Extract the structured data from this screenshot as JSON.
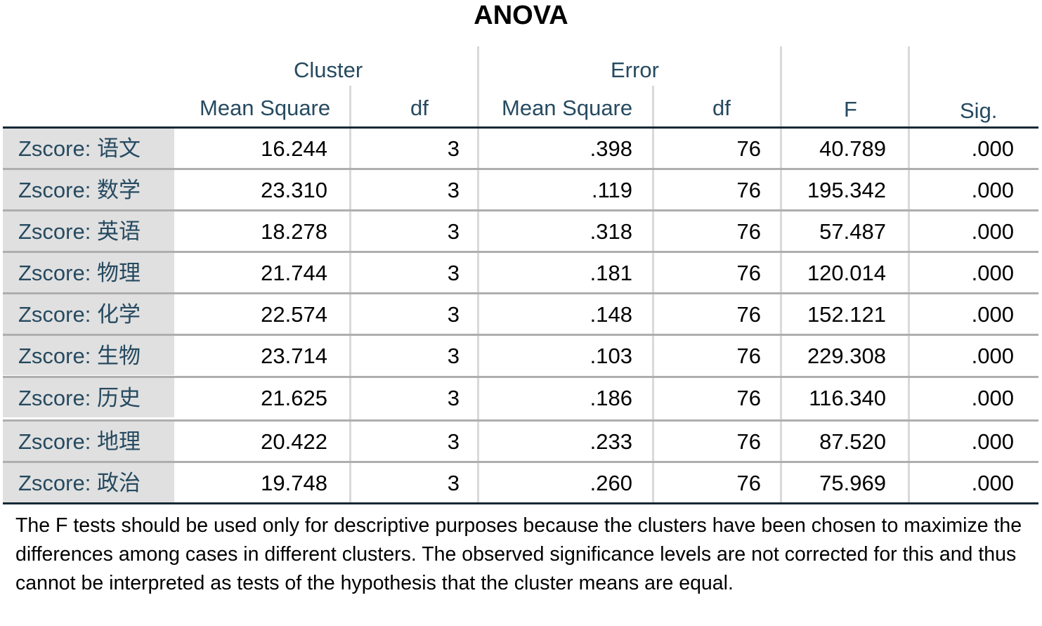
{
  "title": "ANOVA",
  "headers": {
    "cluster": "Cluster",
    "error": "Error",
    "cluster_mean_square": "Mean Square",
    "cluster_df": "df",
    "error_mean_square": "Mean Square",
    "error_df": "df",
    "f": "F",
    "sig": "Sig."
  },
  "rows": [
    {
      "label": "Zscore:  语文",
      "cluster_ms": "16.244",
      "cluster_df": "3",
      "error_ms": ".398",
      "error_df": "76",
      "f": "40.789",
      "sig": ".000"
    },
    {
      "label": "Zscore:  数学",
      "cluster_ms": "23.310",
      "cluster_df": "3",
      "error_ms": ".119",
      "error_df": "76",
      "f": "195.342",
      "sig": ".000"
    },
    {
      "label": "Zscore:  英语",
      "cluster_ms": "18.278",
      "cluster_df": "3",
      "error_ms": ".318",
      "error_df": "76",
      "f": "57.487",
      "sig": ".000"
    },
    {
      "label": "Zscore:  物理",
      "cluster_ms": "21.744",
      "cluster_df": "3",
      "error_ms": ".181",
      "error_df": "76",
      "f": "120.014",
      "sig": ".000"
    },
    {
      "label": "Zscore:  化学",
      "cluster_ms": "22.574",
      "cluster_df": "3",
      "error_ms": ".148",
      "error_df": "76",
      "f": "152.121",
      "sig": ".000"
    },
    {
      "label": "Zscore:  生物",
      "cluster_ms": "23.714",
      "cluster_df": "3",
      "error_ms": ".103",
      "error_df": "76",
      "f": "229.308",
      "sig": ".000"
    },
    {
      "label": "Zscore:  历史",
      "cluster_ms": "21.625",
      "cluster_df": "3",
      "error_ms": ".186",
      "error_df": "76",
      "f": "116.340",
      "sig": ".000"
    },
    {
      "label": "Zscore:  地理",
      "cluster_ms": "20.422",
      "cluster_df": "3",
      "error_ms": ".233",
      "error_df": "76",
      "f": "87.520",
      "sig": ".000"
    },
    {
      "label": "Zscore:  政治",
      "cluster_ms": "19.748",
      "cluster_df": "3",
      "error_ms": ".260",
      "error_df": "76",
      "f": "75.969",
      "sig": ".000"
    }
  ],
  "footnote": "The F tests should be used only for descriptive purposes because the clusters have been chosen to maximize the differences among cases in different clusters. The observed significance levels are not corrected for this and thus cannot be interpreted as tests of the hypothesis that the cluster means are equal.",
  "colors": {
    "header_text": "#264a60",
    "label_bg": "#e0e0e0",
    "rule_dark": "#152935"
  }
}
